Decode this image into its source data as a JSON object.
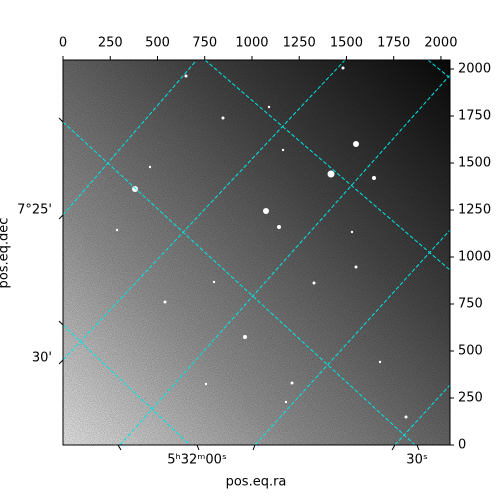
{
  "chart_data": {
    "type": "image",
    "xlabel": "pos.eq.ra",
    "ylabel": "pos.eq.dec",
    "xlim": [
      0,
      2048
    ],
    "ylim": [
      0,
      2048
    ],
    "xticks": [
      0,
      250,
      500,
      750,
      1000,
      1250,
      1500,
      1750,
      2000
    ],
    "yticks": [
      0,
      250,
      500,
      750,
      1000,
      1250,
      1500,
      1750,
      2000
    ],
    "ra_tick_labels": [
      "5ʰ32ᵐ00ˢ",
      "30ˢ"
    ],
    "dec_tick_labels": [
      "7°25'",
      "30'"
    ],
    "grid_color": "#00e5e5"
  }
}
